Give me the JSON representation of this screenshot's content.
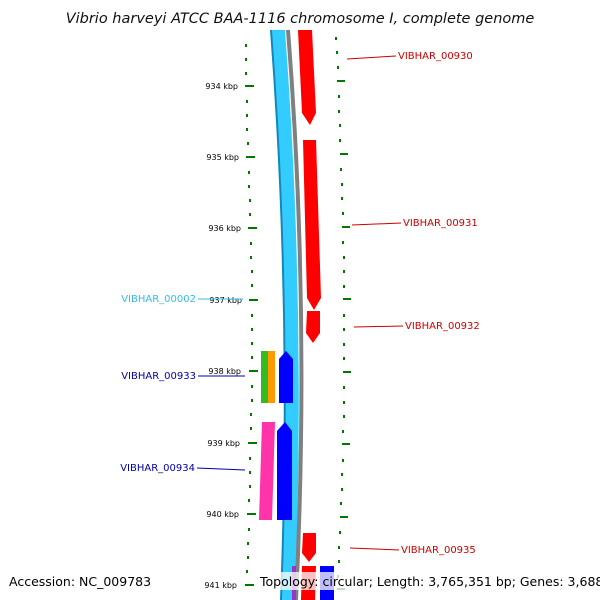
{
  "title": "Vibrio harveyi ATCC BAA-1116 chromosome I, complete genome",
  "accession_text": "Accession: NC_009783",
  "topology_text": "Topology: circular; Length: 3,765,351 bp; Genes: 3,688",
  "ticks": [
    "934 kbp",
    "935 kbp",
    "936 kbp",
    "937 kbp",
    "938 kbp",
    "939 kbp",
    "940 kbp",
    "941 kbp"
  ],
  "gene_labels": {
    "g00930": "VIBHAR_00930",
    "g00931": "VIBHAR_00931",
    "g00932": "VIBHAR_00932",
    "g00935": "VIBHAR_00935",
    "g00002": "VIBHAR_00002",
    "g00933": "VIBHAR_00933",
    "g00934": "VIBHAR_00934"
  },
  "colors": {
    "forward_cds": "#ff0000",
    "reverse_cds": "#0000ff",
    "rna": "#33ccff",
    "backbone": "#808080",
    "tick": "#007700",
    "label_forward": "#cc0000",
    "label_reverse": "#0000aa",
    "label_rna": "#33bbee",
    "green_feature": "#33bb22",
    "orange_feature": "#ff9900",
    "pink_feature": "#ff33aa"
  }
}
